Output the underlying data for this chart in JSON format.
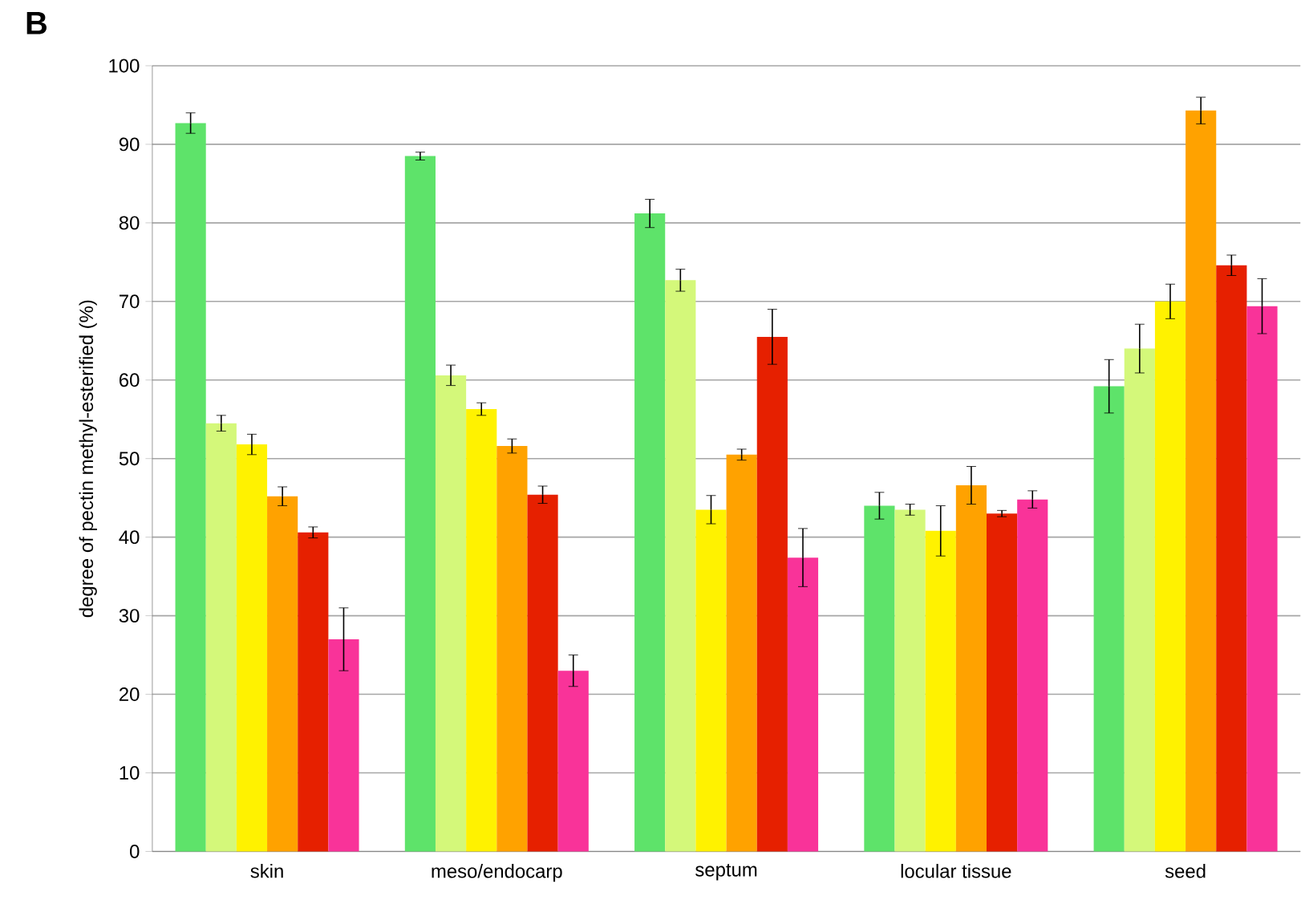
{
  "chart_data": {
    "type": "bar",
    "ylabel": "degree of pectin methyl-esterified (%)",
    "annotations": [
      "B"
    ],
    "categories": [
      "skin",
      "meso/endocarp",
      "septum",
      "locular tissue",
      "seed"
    ],
    "ylim": [
      0,
      100
    ],
    "yticks": [
      0,
      10,
      20,
      30,
      40,
      50,
      60,
      70,
      80,
      90,
      100
    ],
    "grid": "y",
    "series": [
      {
        "color": "#5ee36a",
        "values": [
          92.7,
          88.5,
          81.2,
          44,
          59.2
        ],
        "errors": [
          1.3,
          0.5,
          1.8,
          1.7,
          3.4
        ]
      },
      {
        "color": "#d4f87a",
        "values": [
          54.5,
          60.6,
          72.7,
          43.5,
          64
        ],
        "errors": [
          1,
          1.3,
          1.4,
          0.7,
          3.1
        ]
      },
      {
        "color": "#fff200",
        "values": [
          51.8,
          56.3,
          43.5,
          40.8,
          70
        ],
        "errors": [
          1.3,
          0.8,
          1.8,
          3.2,
          2.2
        ]
      },
      {
        "color": "#ffa200",
        "values": [
          45.2,
          51.6,
          50.5,
          46.6,
          94.3
        ],
        "errors": [
          1.2,
          0.9,
          0.7,
          2.4,
          1.7
        ]
      },
      {
        "color": "#e62000",
        "values": [
          40.6,
          45.4,
          65.5,
          43,
          74.6
        ],
        "errors": [
          0.7,
          1.1,
          3.5,
          0.4,
          1.3
        ]
      },
      {
        "color": "#f93399",
        "values": [
          27,
          23,
          37.4,
          44.8,
          69.4
        ],
        "errors": [
          4,
          2,
          3.7,
          1.1,
          3.5
        ]
      }
    ]
  }
}
